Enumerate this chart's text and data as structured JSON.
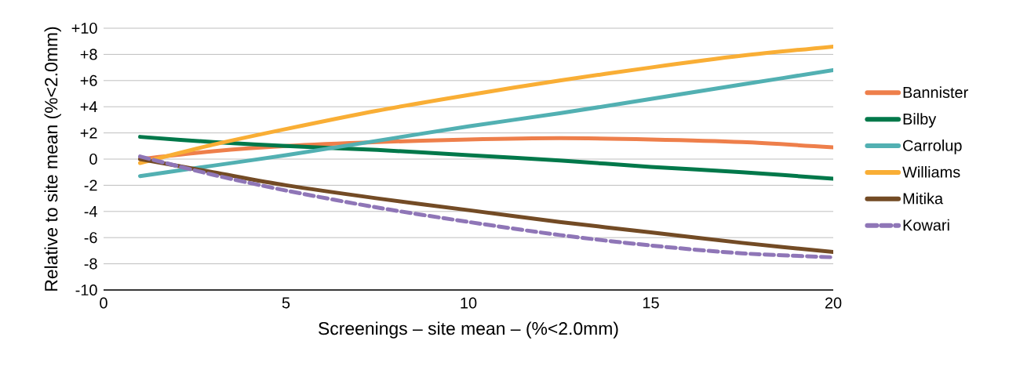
{
  "chart_data": {
    "type": "line",
    "xlabel": "Screenings – site mean – (%<2.0mm)",
    "ylabel": "Relative to site mean (%<2.0mm)",
    "xlim": [
      0,
      20
    ],
    "ylim": [
      -10,
      10
    ],
    "xticks": [
      0,
      5,
      10,
      15,
      20
    ],
    "yticks": [
      {
        "value": 10,
        "label": "+10"
      },
      {
        "value": 8,
        "label": "+8"
      },
      {
        "value": 6,
        "label": "+6"
      },
      {
        "value": 4,
        "label": "+4"
      },
      {
        "value": 2,
        "label": "+2"
      },
      {
        "value": 0,
        "label": "0"
      },
      {
        "value": -2,
        "label": "-2"
      },
      {
        "value": -4,
        "label": "-4"
      },
      {
        "value": -6,
        "label": "-6"
      },
      {
        "value": -8,
        "label": "-8"
      },
      {
        "value": -10,
        "label": "-10"
      }
    ],
    "grid": "y",
    "legend": "right",
    "marker": "none",
    "x": [
      1,
      3,
      5,
      7.5,
      10,
      12.5,
      15,
      17.5,
      20
    ],
    "series": [
      {
        "name": "Bannister",
        "color": "#ee7f4b",
        "values": [
          0,
          0.6,
          1.0,
          1.3,
          1.5,
          1.6,
          1.5,
          1.3,
          0.9
        ]
      },
      {
        "name": "Bilby",
        "color": "#00784a",
        "values": [
          1.7,
          1.3,
          1.0,
          0.7,
          0.3,
          -0.1,
          -0.6,
          -1.0,
          -1.5
        ]
      },
      {
        "name": "Carrolup",
        "color": "#52b0b2",
        "values": [
          -1.3,
          -0.5,
          0.3,
          1.4,
          2.5,
          3.5,
          4.6,
          5.7,
          6.8
        ]
      },
      {
        "name": "Williams",
        "color": "#f9ae35",
        "values": [
          -0.3,
          1.1,
          2.3,
          3.7,
          4.9,
          6.0,
          7.0,
          7.9,
          8.6
        ]
      },
      {
        "name": "Mitika",
        "color": "#734b25",
        "values": [
          0,
          -1.0,
          -2.0,
          -3.0,
          -3.9,
          -4.8,
          -5.6,
          -6.4,
          -7.1
        ]
      },
      {
        "name": "Kowari",
        "color": "#8f76b7",
        "line_style": "dashed",
        "values": [
          0.2,
          -1.2,
          -2.4,
          -3.7,
          -4.8,
          -5.8,
          -6.6,
          -7.2,
          -7.5
        ]
      }
    ]
  }
}
